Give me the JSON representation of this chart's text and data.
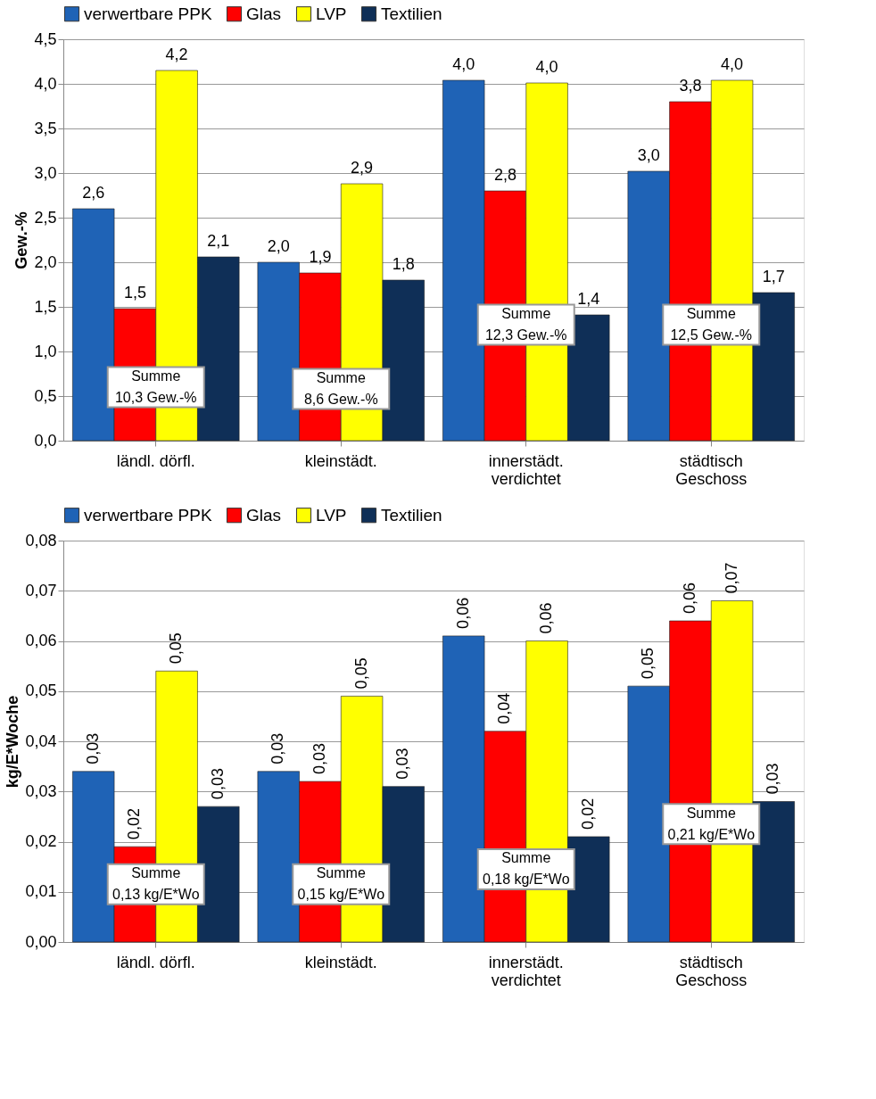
{
  "chart_data": [
    {
      "type": "bar",
      "ylabel": "Gew.-%",
      "categories": [
        "ländl. dörfl.",
        "kleinstädt.",
        "innerstädt.\nverdichtet",
        "städtisch\nGeschoss"
      ],
      "series": [
        {
          "name": "verwertbare PPK",
          "color": "#1f63b6",
          "values": [
            2.6,
            2.0,
            4.04,
            3.02
          ],
          "value_labels": [
            "2,6",
            "2,0",
            "4,0",
            "3,0"
          ]
        },
        {
          "name": "Glas",
          "color": "#ff0000",
          "values": [
            1.48,
            1.88,
            2.8,
            3.8
          ],
          "value_labels": [
            "1,5",
            "1,9",
            "2,8",
            "3,8"
          ]
        },
        {
          "name": "LVP",
          "color": "#ffff00",
          "values": [
            4.15,
            2.88,
            4.01,
            4.04
          ],
          "value_labels": [
            "4,2",
            "2,9",
            "4,0",
            "4,0"
          ]
        },
        {
          "name": "Textilien",
          "color": "#0f2f57",
          "values": [
            2.06,
            1.8,
            1.41,
            1.66
          ],
          "value_labels": [
            "2,1",
            "1,8",
            "1,4",
            "1,7"
          ]
        }
      ],
      "ylim": [
        0,
        4.5
      ],
      "yticks": [
        {
          "value": 0,
          "label": "0,0"
        },
        {
          "value": 0.5,
          "label": "0,5"
        },
        {
          "value": 1,
          "label": "1,0"
        },
        {
          "value": 1.5,
          "label": "1,5"
        },
        {
          "value": 2,
          "label": "2,0"
        },
        {
          "value": 2.5,
          "label": "2,5"
        },
        {
          "value": 3,
          "label": "3,0"
        },
        {
          "value": 3.5,
          "label": "3,5"
        },
        {
          "value": 4,
          "label": "4,0"
        },
        {
          "value": 4.5,
          "label": "4,5"
        }
      ],
      "grid": "y",
      "legend": "top",
      "annotations": [
        {
          "text": "Summe\n10,3 Gew.-%",
          "x": "ländl. dörfl.",
          "y": 0.6
        },
        {
          "text": "Summe\n8,6 Gew.-%",
          "x": "kleinstädt.",
          "y": 0.58
        },
        {
          "text": "Summe\n12,3  Gew.-%",
          "x": "innerstädt.\nverdichtet",
          "y": 1.3
        },
        {
          "text": "Summe\n12,5 Gew.-%",
          "x": "städtisch\nGeschoss",
          "y": 1.3
        }
      ]
    },
    {
      "type": "bar",
      "ylabel": "kg/E*Woche",
      "categories": [
        "ländl. dörfl.",
        "kleinstädt.",
        "innerstädt.\nverdichtet",
        "städtisch\nGeschoss"
      ],
      "series": [
        {
          "name": "verwertbare PPK",
          "color": "#1f63b6",
          "values": [
            0.034,
            0.034,
            0.061,
            0.051
          ],
          "value_labels": [
            "0,03",
            "0,03",
            "0,06",
            "0,05"
          ]
        },
        {
          "name": "Glas",
          "color": "#ff0000",
          "values": [
            0.019,
            0.032,
            0.042,
            0.064
          ],
          "value_labels": [
            "0,02",
            "0,03",
            "0,04",
            "0,06"
          ]
        },
        {
          "name": "LVP",
          "color": "#ffff00",
          "values": [
            0.054,
            0.049,
            0.06,
            0.068
          ],
          "value_labels": [
            "0,05",
            "0,05",
            "0,06",
            "0,07"
          ]
        },
        {
          "name": "Textilien",
          "color": "#0f2f57",
          "values": [
            0.027,
            0.031,
            0.021,
            0.028
          ],
          "value_labels": [
            "0,03",
            "0,03",
            "0,02",
            "0,03"
          ]
        }
      ],
      "ylim": [
        0,
        0.08
      ],
      "yticks": [
        {
          "value": 0,
          "label": "0,00"
        },
        {
          "value": 0.01,
          "label": "0,01"
        },
        {
          "value": 0.02,
          "label": "0,02"
        },
        {
          "value": 0.03,
          "label": "0,03"
        },
        {
          "value": 0.04,
          "label": "0,04"
        },
        {
          "value": 0.05,
          "label": "0,05"
        },
        {
          "value": 0.06,
          "label": "0,06"
        },
        {
          "value": 0.07,
          "label": "0,07"
        },
        {
          "value": 0.08,
          "label": "0,08"
        }
      ],
      "grid": "y",
      "legend": "top",
      "annotations": [
        {
          "text": "Summe\n0,13 kg/E*Wo",
          "x": "ländl. dörfl.",
          "y": 0.0115
        },
        {
          "text": "Summe\n0,15 kg/E*Wo",
          "x": "kleinstädt.",
          "y": 0.0115
        },
        {
          "text": "Summe\n0,18 kg/E*Wo",
          "x": "innerstädt.\nverdichtet",
          "y": 0.0145
        },
        {
          "text": "Summe\n0,21 kg/E*Wo",
          "x": "städtisch\nGeschoss",
          "y": 0.0235
        }
      ]
    }
  ]
}
